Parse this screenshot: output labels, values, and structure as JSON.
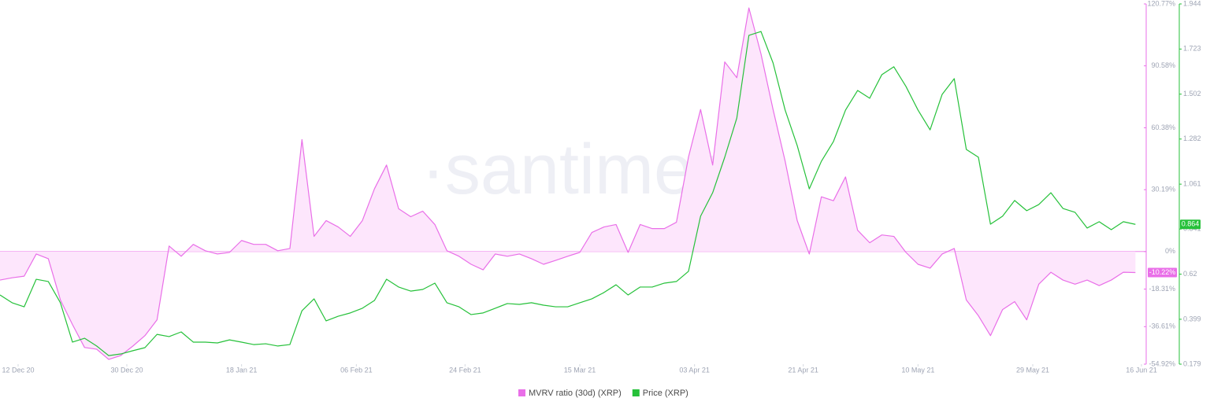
{
  "chart_data": {
    "type": "line",
    "watermark": "·santiment·",
    "x": [
      "2020-12-09",
      "2020-12-11",
      "2020-12-13",
      "2020-12-15",
      "2020-12-17",
      "2020-12-19",
      "2020-12-21",
      "2020-12-23",
      "2020-12-25",
      "2020-12-27",
      "2020-12-29",
      "2020-12-31",
      "2021-01-02",
      "2021-01-04",
      "2021-01-06",
      "2021-01-08",
      "2021-01-10",
      "2021-01-12",
      "2021-01-14",
      "2021-01-16",
      "2021-01-18",
      "2021-01-20",
      "2021-01-22",
      "2021-01-24",
      "2021-01-26",
      "2021-01-28",
      "2021-01-30",
      "2021-02-01",
      "2021-02-03",
      "2021-02-05",
      "2021-02-07",
      "2021-02-09",
      "2021-02-11",
      "2021-02-13",
      "2021-02-15",
      "2021-02-17",
      "2021-02-19",
      "2021-02-21",
      "2021-02-23",
      "2021-02-25",
      "2021-02-27",
      "2021-03-01",
      "2021-03-03",
      "2021-03-05",
      "2021-03-07",
      "2021-03-09",
      "2021-03-11",
      "2021-03-13",
      "2021-03-15",
      "2021-03-17",
      "2021-03-19",
      "2021-03-21",
      "2021-03-23",
      "2021-03-25",
      "2021-03-27",
      "2021-03-29",
      "2021-03-31",
      "2021-04-02",
      "2021-04-04",
      "2021-04-06",
      "2021-04-08",
      "2021-04-10",
      "2021-04-12",
      "2021-04-14",
      "2021-04-16",
      "2021-04-18",
      "2021-04-20",
      "2021-04-22",
      "2021-04-24",
      "2021-04-26",
      "2021-04-28",
      "2021-04-30",
      "2021-05-02",
      "2021-05-04",
      "2021-05-06",
      "2021-05-08",
      "2021-05-10",
      "2021-05-12",
      "2021-05-14",
      "2021-05-16",
      "2021-05-18",
      "2021-05-20",
      "2021-05-22",
      "2021-05-24",
      "2021-05-26",
      "2021-05-28",
      "2021-05-30",
      "2021-06-01",
      "2021-06-03",
      "2021-06-05",
      "2021-06-07",
      "2021-06-09",
      "2021-06-11",
      "2021-06-13",
      "2021-06-15"
    ],
    "xlim": [
      "2020-12-09",
      "2021-06-16"
    ],
    "xticks": [
      {
        "value": "2020-12-12",
        "label": "12 Dec 20"
      },
      {
        "value": "2020-12-30",
        "label": "30 Dec 20"
      },
      {
        "value": "2021-01-18",
        "label": "18 Jan 21"
      },
      {
        "value": "2021-02-06",
        "label": "06 Feb 21"
      },
      {
        "value": "2021-02-24",
        "label": "24 Feb 21"
      },
      {
        "value": "2021-03-15",
        "label": "15 Mar 21"
      },
      {
        "value": "2021-04-03",
        "label": "03 Apr 21"
      },
      {
        "value": "2021-04-21",
        "label": "21 Apr 21"
      },
      {
        "value": "2021-05-10",
        "label": "10 May 21"
      },
      {
        "value": "2021-05-29",
        "label": "29 May 21"
      },
      {
        "value": "2021-06-16",
        "label": "16 Jun 21"
      }
    ],
    "ylim": [
      -54.92,
      120.77
    ],
    "yticks": [
      {
        "value": 120.77,
        "label": "120.77%"
      },
      {
        "value": 90.58,
        "label": "90.58%"
      },
      {
        "value": 60.38,
        "label": "60.38%"
      },
      {
        "value": 30.19,
        "label": "30.19%"
      },
      {
        "value": 0,
        "label": "0%"
      },
      {
        "value": -18.31,
        "label": "-18.31%"
      },
      {
        "value": -36.61,
        "label": "-36.61%"
      },
      {
        "value": -54.92,
        "label": "-54.92%"
      }
    ],
    "y2lim": [
      0.179,
      1.944
    ],
    "y2ticks": [
      1.944,
      1.723,
      1.502,
      1.282,
      1.061,
      0.841,
      0.62,
      0.399,
      0.179
    ],
    "series": [
      {
        "name": "MVRV ratio (30d) (XRP)",
        "color": "#e96fe8",
        "fill": "#fde6fc",
        "values": [
          -13.9,
          -12.8,
          -12.0,
          -1.2,
          -3.5,
          -23.6,
          -35.6,
          -46.8,
          -47.6,
          -52.6,
          -50.7,
          -46.1,
          -41.0,
          -33.3,
          2.7,
          -2.3,
          3.5,
          0.4,
          -1.2,
          -0.4,
          5.4,
          3.5,
          3.5,
          0.4,
          1.5,
          54.6,
          7.4,
          15.1,
          12.0,
          7.4,
          15.1,
          30.6,
          42.2,
          20.9,
          17.0,
          19.7,
          13.2,
          0.4,
          -2.3,
          -6.2,
          -8.9,
          -1.2,
          -2.3,
          -1.2,
          -3.5,
          -6.2,
          -4.3,
          -2.3,
          -0.4,
          9.3,
          12.0,
          13.2,
          -0.4,
          13.2,
          11.2,
          11.2,
          14.3,
          46.1,
          69.3,
          42.2,
          92.5,
          84.8,
          118.8,
          96.4,
          69.3,
          44.1,
          15.1,
          -1.2,
          26.7,
          24.8,
          36.4,
          10.4,
          4.3,
          8.1,
          7.4,
          -0.4,
          -6.2,
          -8.1,
          -1.2,
          1.5,
          -23.6,
          -31.3,
          -41.0,
          -28.3,
          -24.4,
          -33.3,
          -15.9,
          -10.1,
          -13.9,
          -15.9,
          -13.9,
          -16.6,
          -13.9,
          -10.1,
          -10.22
        ],
        "value_labels": [
          null,
          null,
          null,
          null,
          null,
          null,
          null,
          null,
          null,
          null,
          null,
          null,
          null,
          null,
          null,
          null,
          null,
          null,
          null,
          null,
          null,
          null,
          null,
          null,
          null,
          null,
          null,
          null,
          null,
          null,
          null,
          null,
          null,
          null,
          null,
          null,
          null,
          null,
          null,
          null,
          null,
          null,
          null,
          null,
          null,
          null,
          null,
          null,
          null,
          null,
          null,
          null,
          null,
          null,
          null,
          null,
          null,
          null,
          null,
          null,
          null,
          null,
          null,
          null,
          null,
          null,
          null,
          null,
          null,
          null,
          null,
          null,
          null,
          null,
          null,
          null,
          null,
          null,
          null,
          null,
          null,
          null,
          null,
          null,
          null,
          null,
          null,
          null,
          null,
          null,
          null,
          null,
          null,
          null,
          "-10.22%"
        ]
      },
      {
        "name": "Price (XRP)",
        "color": "#26c13a",
        "axis": "y2",
        "values": [
          0.518,
          0.48,
          0.46,
          0.595,
          0.584,
          0.48,
          0.287,
          0.306,
          0.268,
          0.221,
          0.229,
          0.245,
          0.26,
          0.325,
          0.314,
          0.337,
          0.287,
          0.287,
          0.283,
          0.298,
          0.287,
          0.275,
          0.279,
          0.268,
          0.275,
          0.441,
          0.499,
          0.391,
          0.414,
          0.43,
          0.453,
          0.491,
          0.595,
          0.557,
          0.537,
          0.545,
          0.576,
          0.48,
          0.46,
          0.422,
          0.43,
          0.453,
          0.476,
          0.472,
          0.48,
          0.468,
          0.46,
          0.46,
          0.48,
          0.499,
          0.53,
          0.568,
          0.518,
          0.557,
          0.557,
          0.576,
          0.584,
          0.634,
          0.904,
          1.019,
          1.193,
          1.385,
          1.79,
          1.809,
          1.655,
          1.424,
          1.25,
          1.038,
          1.173,
          1.27,
          1.424,
          1.52,
          1.482,
          1.597,
          1.636,
          1.54,
          1.424,
          1.327,
          1.501,
          1.578,
          1.231,
          1.193,
          0.865,
          0.904,
          0.981,
          0.931,
          0.961,
          1.019,
          0.942,
          0.923,
          0.846,
          0.877,
          0.838,
          0.877,
          0.864
        ]
      }
    ]
  }
}
